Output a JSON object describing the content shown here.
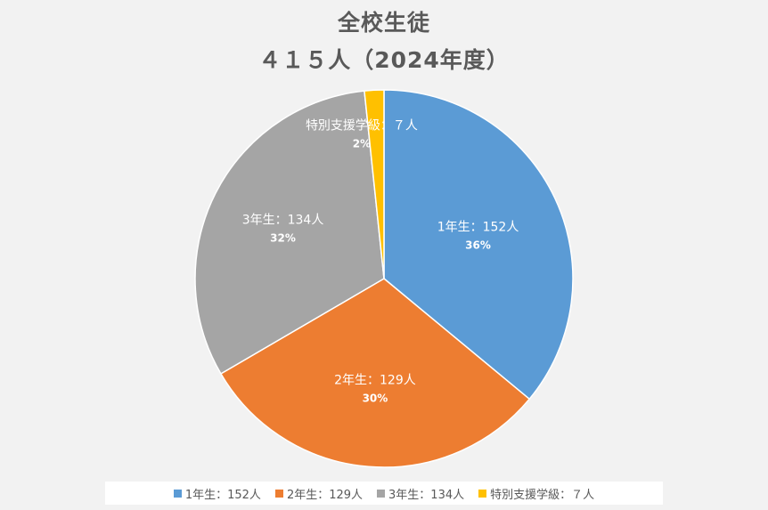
{
  "chart_data": {
    "type": "pie",
    "title": "全校生徒",
    "subtitle": "４１５人（2024年度）",
    "legend_position": "bottom",
    "categories": [
      "1年生：152人",
      "2年生：129人",
      "3年生：134人",
      "特別支援学級：７人"
    ],
    "values": [
      152,
      129,
      134,
      7
    ],
    "percent_labels": [
      "36%",
      "30%",
      "32%",
      "2%"
    ],
    "colors": [
      "#5b9bd5",
      "#ed7d31",
      "#a5a5a5",
      "#ffc000"
    ]
  }
}
